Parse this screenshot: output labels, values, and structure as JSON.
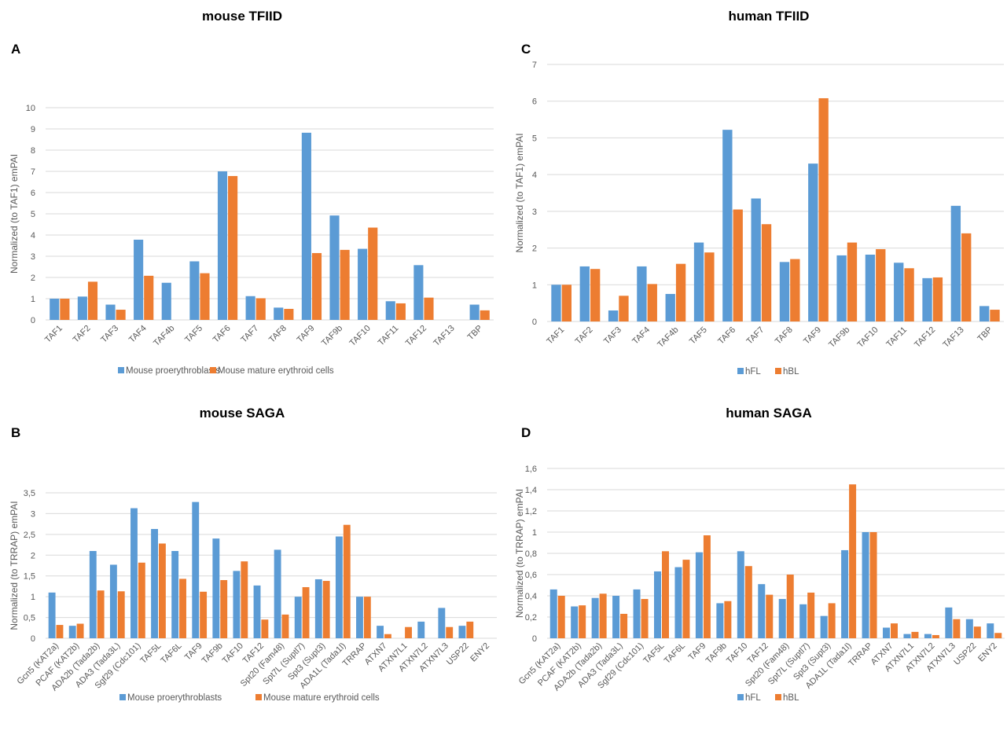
{
  "colors": {
    "series1": "#5b9bd5",
    "series2": "#ed7d31",
    "grid": "#d9d9d9",
    "text": "#595959"
  },
  "chart_data": [
    {
      "type": "bar",
      "title": "mouse TFIID",
      "panel_label": "A",
      "ylabel": "Normalized (to TAF1) emPAI",
      "xlabel": "",
      "ylim": [
        0,
        10
      ],
      "y_ticks": [
        "0",
        "1",
        "2",
        "3",
        "4",
        "5",
        "6",
        "7",
        "8",
        "9",
        "10"
      ],
      "grid": true,
      "legend_position": "bottom",
      "categories": [
        "TAF1",
        "TAF2",
        "TAF3",
        "TAF4",
        "TAF4b",
        "TAF5",
        "TAF6",
        "TAF7",
        "TAF8",
        "TAF9",
        "TAF9b",
        "TAF10",
        "TAF11",
        "TAF12",
        "TAF13",
        "TBP"
      ],
      "series": [
        {
          "name": "Mouse proerythroblasts",
          "values": [
            1.0,
            1.1,
            0.72,
            3.78,
            1.75,
            2.76,
            7.0,
            1.12,
            0.58,
            8.82,
            4.92,
            3.35,
            0.88,
            2.58,
            0,
            0.72
          ]
        },
        {
          "name": "Mouse mature erythroid cells",
          "values": [
            1.0,
            1.8,
            0.48,
            2.08,
            0,
            2.2,
            6.78,
            1.02,
            0.52,
            3.15,
            3.3,
            4.35,
            0.78,
            1.05,
            0,
            0.45
          ]
        }
      ]
    },
    {
      "type": "bar",
      "title": "human TFIID",
      "panel_label": "C",
      "ylabel": "Normalized (to TAF1) emPAI",
      "xlabel": "",
      "ylim": [
        0,
        7
      ],
      "y_ticks": [
        "0",
        "1",
        "2",
        "3",
        "4",
        "5",
        "6",
        "7"
      ],
      "grid": true,
      "legend_position": "bottom",
      "categories": [
        "TAF1",
        "TAF2",
        "TAF3",
        "TAF4",
        "TAF4b",
        "TAF5",
        "TAF6",
        "TAF7",
        "TAF8",
        "TAF9",
        "TAF9b",
        "TAF10",
        "TAF11",
        "TAF12",
        "TAF13",
        "TBP"
      ],
      "series": [
        {
          "name": "hFL",
          "values": [
            1.0,
            1.5,
            0.3,
            1.5,
            0.75,
            2.15,
            5.22,
            3.35,
            1.62,
            4.3,
            1.8,
            1.82,
            1.6,
            1.18,
            3.15,
            0.42
          ]
        },
        {
          "name": "hBL",
          "values": [
            1.0,
            1.43,
            0.7,
            1.02,
            1.57,
            1.88,
            3.05,
            2.65,
            1.7,
            6.08,
            2.15,
            1.97,
            1.45,
            1.2,
            2.4,
            0.32
          ]
        }
      ]
    },
    {
      "type": "bar",
      "title": "mouse SAGA",
      "panel_label": "B",
      "ylabel": "Normalized (to TRRAP) emPAI",
      "xlabel": "",
      "ylim": [
        0,
        3.5
      ],
      "y_ticks": [
        "0",
        "0,5",
        "1",
        "1,5",
        "2",
        "2,5",
        "3",
        "3,5"
      ],
      "grid": true,
      "legend_position": "bottom",
      "categories": [
        "Gcn5 (KAT2a)",
        "PCAF (KAT2b)",
        "ADA2b (Tada2b)",
        "ADA3 (Tada3L)",
        "Sgf29 (Cdc101)",
        "TAF5L",
        "TAF6L",
        "TAF9",
        "TAF9b",
        "TAF10",
        "TAF12",
        "Spt20 (Fam48)",
        "Spt7L (Suptl7)",
        "Spt3 (Supt3)",
        "ADA1L (Tada1l)",
        "TRRAP",
        "ATXN7",
        "ATXN7L1",
        "ATXN7L2",
        "ATXN7L3",
        "USP22",
        "ENY2"
      ],
      "series": [
        {
          "name": "Mouse proerythroblasts",
          "values": [
            1.1,
            0.3,
            2.1,
            1.77,
            3.13,
            2.63,
            2.1,
            3.28,
            2.4,
            1.62,
            1.27,
            2.13,
            1.0,
            1.42,
            2.45,
            1.0,
            0.3,
            0,
            0.4,
            0.73,
            0.3,
            0
          ]
        },
        {
          "name": "Mouse mature erythroid cells",
          "values": [
            0.32,
            0.35,
            1.15,
            1.13,
            1.82,
            2.28,
            1.43,
            1.12,
            1.4,
            1.85,
            0.45,
            0.57,
            1.23,
            1.38,
            2.73,
            1.0,
            0.1,
            0.27,
            0,
            0.27,
            0.4,
            0
          ]
        }
      ]
    },
    {
      "type": "bar",
      "title": "human SAGA",
      "panel_label": "D",
      "ylabel": "Normalized (to TRRAP) emPAI",
      "xlabel": "",
      "ylim": [
        0,
        1.6
      ],
      "y_ticks": [
        "0",
        "0,2",
        "0,4",
        "0,6",
        "0,8",
        "1",
        "1,2",
        "1,4",
        "1,6"
      ],
      "grid": true,
      "legend_position": "bottom",
      "categories": [
        "Gcn5 (KAT2a)",
        "PCAF (KAT2b)",
        "ADA2b (Tada2b)",
        "ADA3 (Tada3L)",
        "Sgf29 (Cdc101)",
        "TAF5L",
        "TAF6L",
        "TAF9",
        "TAF9b",
        "TAF10",
        "TAF12",
        "Spt20 (Fam48)",
        "Spt7L (Suptl7)",
        "Spt3 (Supt3)",
        "ADA1L (Tada1l)",
        "TRRAP",
        "ATXN7",
        "ATXN7L1",
        "ATXN7L2",
        "ATXN7L3",
        "USP22",
        "ENY2"
      ],
      "series": [
        {
          "name": "hFL",
          "values": [
            0.46,
            0.3,
            0.38,
            0.4,
            0.46,
            0.63,
            0.67,
            0.81,
            0.33,
            0.82,
            0.51,
            0.37,
            0.32,
            0.21,
            0.83,
            1.0,
            0.1,
            0.04,
            0.04,
            0.29,
            0.18,
            0.14
          ]
        },
        {
          "name": "hBL",
          "values": [
            0.4,
            0.31,
            0.42,
            0.23,
            0.37,
            0.82,
            0.74,
            0.97,
            0.35,
            0.68,
            0.41,
            0.6,
            0.43,
            0.33,
            1.45,
            1.0,
            0.14,
            0.06,
            0.03,
            0.18,
            0.11,
            0.05
          ]
        }
      ]
    }
  ]
}
